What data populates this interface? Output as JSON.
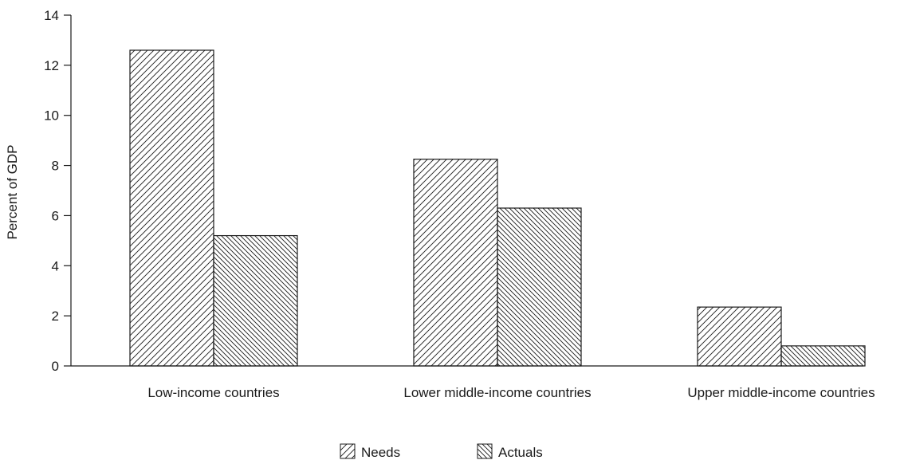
{
  "chart_data": {
    "type": "bar",
    "categories": [
      "Low-income countries",
      "Lower middle-income countries",
      "Upper middle-income countries"
    ],
    "series": [
      {
        "name": "Needs",
        "values": [
          12.6,
          8.25,
          2.35
        ],
        "pattern": "forward-hatch"
      },
      {
        "name": "Actuals",
        "values": [
          5.2,
          6.3,
          0.8
        ],
        "pattern": "back-hatch"
      }
    ],
    "ylabel": "Percent of GDP",
    "xlabel": "",
    "ylim": [
      0,
      14
    ],
    "yticks": [
      0,
      2,
      4,
      6,
      8,
      10,
      12,
      14
    ],
    "grid": false,
    "legend_position": "bottom-center",
    "colors": {
      "stroke": "#1a1a1a",
      "background": "#ffffff"
    }
  }
}
